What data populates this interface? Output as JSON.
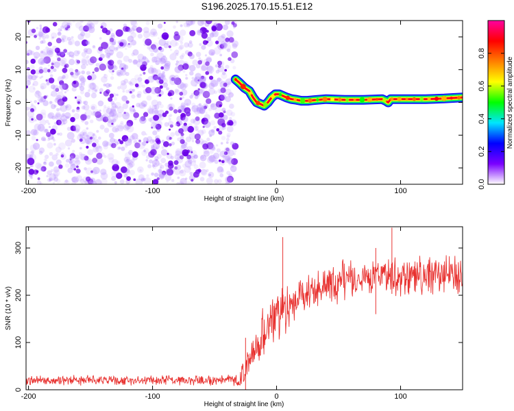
{
  "title": "S196.2025.170.15.51.E12",
  "chart_data": [
    {
      "type": "heatmap",
      "xlabel": "Height of straight line (km)",
      "ylabel": "Frequency (Hz)",
      "xlim": [
        -202,
        150
      ],
      "ylim": [
        -25,
        25
      ],
      "x_ticks": [
        -200,
        -100,
        0,
        100
      ],
      "y_ticks": [
        -20,
        -10,
        0,
        10,
        20
      ],
      "noise_region_x": [
        -202,
        -33
      ],
      "ridge_amplitude": 0.9,
      "ridge": {
        "x": [
          -33,
          -30,
          -26,
          -22,
          -19,
          -16,
          -13,
          -10,
          -7,
          -4,
          -1,
          2,
          5,
          8,
          12,
          16,
          20,
          25,
          30,
          40,
          55,
          70,
          85,
          88,
          90,
          92,
          100,
          120,
          135,
          150
        ],
        "y": [
          7,
          6,
          4.5,
          3.5,
          1.5,
          0,
          -0.5,
          -1,
          0,
          1.5,
          2.5,
          2.5,
          2,
          1.5,
          1,
          0.8,
          0.5,
          0.5,
          0.7,
          1,
          0.8,
          0.8,
          1,
          0.5,
          0,
          1,
          1,
          1,
          1.2,
          1.5
        ]
      },
      "colorbar": {
        "label": "Normalized spectral amplitude",
        "ticks": [
          0.0,
          0.2,
          0.4,
          0.6,
          0.8
        ],
        "tick_labels": [
          "0.0",
          "0.2",
          "0.4",
          "0.6",
          "0.8"
        ],
        "range": [
          0,
          1
        ],
        "colors": [
          "#ffffff",
          "#7a00ff",
          "#0000ff",
          "#00e5ff",
          "#00ff00",
          "#ffff00",
          "#ff7f00",
          "#ff0000",
          "#ff00a0"
        ]
      }
    },
    {
      "type": "line",
      "xlabel": "Height of straight line (km)",
      "ylabel": "SNR (10 * v/v)",
      "xlim": [
        -202,
        150
      ],
      "ylim": [
        0,
        345
      ],
      "x_ticks": [
        -200,
        -100,
        0,
        100
      ],
      "y_ticks": [
        0,
        100,
        200,
        300
      ],
      "color": "#e8312f",
      "envelope": {
        "x": [
          -202,
          -100,
          -30,
          -25,
          -21,
          -15,
          -10,
          -5,
          0,
          5,
          10,
          20,
          30,
          40,
          60,
          80,
          100,
          120,
          150
        ],
        "baseline": [
          20,
          20,
          20,
          40,
          70,
          100,
          120,
          140,
          150,
          165,
          175,
          200,
          215,
          225,
          235,
          240,
          240,
          240,
          245
        ],
        "spread": [
          12,
          12,
          14,
          40,
          50,
          60,
          60,
          60,
          60,
          60,
          55,
          50,
          50,
          50,
          50,
          50,
          50,
          50,
          50
        ]
      },
      "spikes": [
        {
          "x": 5,
          "y": 323
        },
        {
          "x": 93,
          "y": 343
        },
        {
          "x": 80,
          "y": 300
        },
        {
          "x": -25,
          "y": 110
        }
      ]
    }
  ]
}
